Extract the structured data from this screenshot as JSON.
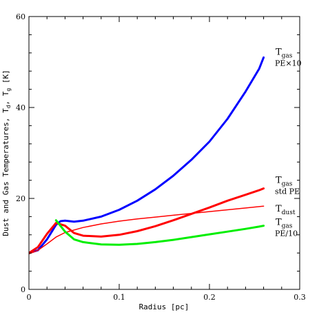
{
  "chart_data": {
    "type": "line",
    "xlabel": "Radius [pc]",
    "ylabel": "Dust and Gas Temperatures, T_d, T_g [K]",
    "ylabel_parts": {
      "prefix": "Dust and Gas Temperatures, T",
      "sub1": "d",
      "mid": ", T",
      "sub2": "g",
      "suffix": " [K]"
    },
    "xlim": [
      0,
      0.3
    ],
    "ylim": [
      0,
      60
    ],
    "xticks": [
      0,
      0.1,
      0.2,
      0.3
    ],
    "xtick_labels": [
      "0",
      "0.1",
      "0.2",
      "0.3"
    ],
    "yticks": [
      0,
      20,
      40,
      60
    ],
    "ytick_labels": [
      "0",
      "20",
      "40",
      "60"
    ],
    "grid": false,
    "series": [
      {
        "label_main": "T",
        "label_sub": "gas",
        "label_line2": "PE×10",
        "color": "#0000ff",
        "x": [
          0,
          0.01,
          0.02,
          0.03,
          0.035,
          0.04,
          0.05,
          0.06,
          0.08,
          0.1,
          0.12,
          0.14,
          0.16,
          0.18,
          0.2,
          0.22,
          0.24,
          0.255,
          0.26
        ],
        "y": [
          8,
          8.6,
          11,
          14.2,
          15.0,
          15.1,
          14.9,
          15.1,
          16.0,
          17.5,
          19.5,
          22,
          25,
          28.5,
          32.5,
          37.5,
          43.5,
          48.5,
          51
        ]
      },
      {
        "label_main": "T",
        "label_sub": "gas",
        "label_line2": "std PE",
        "color": "#ff0000",
        "x": [
          0,
          0.01,
          0.02,
          0.03,
          0.04,
          0.05,
          0.06,
          0.08,
          0.1,
          0.12,
          0.14,
          0.16,
          0.18,
          0.2,
          0.22,
          0.24,
          0.255,
          0.26
        ],
        "y": [
          8,
          9.3,
          12.2,
          14.6,
          14.0,
          12.4,
          11.8,
          11.6,
          12.0,
          12.8,
          13.9,
          15.2,
          16.6,
          18.0,
          19.5,
          20.8,
          21.8,
          22.2
        ]
      },
      {
        "label_main": "T",
        "label_sub": "dust",
        "label_line2": "",
        "color": "#ff0000",
        "x": [
          0,
          0.01,
          0.02,
          0.03,
          0.04,
          0.06,
          0.08,
          0.1,
          0.12,
          0.14,
          0.16,
          0.18,
          0.2,
          0.22,
          0.24,
          0.26
        ],
        "y": [
          7.8,
          8.6,
          10.0,
          11.5,
          12.5,
          13.6,
          14.4,
          15.0,
          15.5,
          15.9,
          16.3,
          16.7,
          17.1,
          17.5,
          17.9,
          18.3
        ]
      },
      {
        "label_main": "T",
        "label_sub": "gas",
        "label_line2": "PE/10",
        "color": "#00ee00",
        "x": [
          0.03,
          0.04,
          0.05,
          0.06,
          0.08,
          0.1,
          0.12,
          0.14,
          0.16,
          0.18,
          0.2,
          0.22,
          0.24,
          0.255,
          0.26
        ],
        "y": [
          15.2,
          12.7,
          11.0,
          10.4,
          9.9,
          9.8,
          10.0,
          10.4,
          10.9,
          11.5,
          12.1,
          12.7,
          13.3,
          13.8,
          14.0
        ]
      }
    ]
  }
}
